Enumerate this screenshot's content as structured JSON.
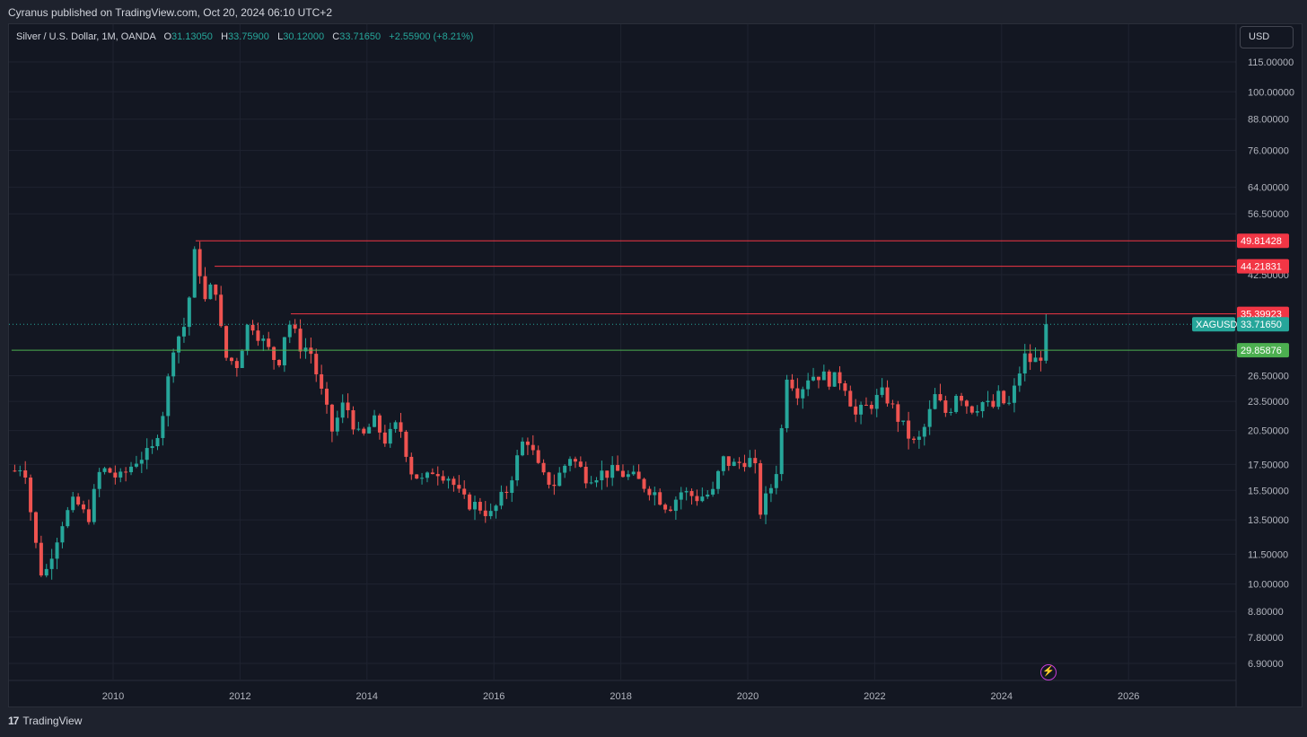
{
  "header": {
    "publisher_line": "Cyranus published on TradingView.com, Oct 20, 2024 06:10 UTC+2"
  },
  "legend": {
    "symbol": "Silver / U.S. Dollar, 1M, OANDA",
    "open_label": "O",
    "open": "31.13050",
    "high_label": "H",
    "high": "33.75900",
    "low_label": "L",
    "low": "30.12000",
    "close_label": "C",
    "close": "33.71650",
    "change": "+2.55900 (+8.21%)"
  },
  "currency_button": "USD",
  "footer": {
    "brand": "TradingView",
    "logo_text": "17"
  },
  "colors": {
    "up": "#26a69a",
    "down": "#ef5350",
    "resistance": "#f23645",
    "support": "#4caf50",
    "background": "#131722",
    "grid": "#1f2330"
  },
  "chart_data": {
    "type": "candlestick",
    "symbol": "XAGUSD",
    "scale": "log",
    "x_tick_labels": [
      "2010",
      "2012",
      "2014",
      "2016",
      "2018",
      "2020",
      "2022",
      "2024",
      "2026"
    ],
    "y_tick_labels": [
      "115.00000",
      "100.00000",
      "88.00000",
      "76.00000",
      "64.00000",
      "56.50000",
      "42.50000",
      "26.50000",
      "23.50000",
      "20.50000",
      "17.50000",
      "15.50000",
      "13.50000",
      "11.50000",
      "10.00000",
      "8.80000",
      "7.80000",
      "6.90000"
    ],
    "current_price": {
      "symbol": "XAGUSD",
      "value": "33.71650",
      "numeric": 33.7165
    },
    "levels": [
      {
        "label": "49.81428",
        "value": 49.81428,
        "kind": "resistance",
        "start": 2011.3
      },
      {
        "label": "44.21831",
        "value": 44.21831,
        "kind": "resistance",
        "start": 2011.6
      },
      {
        "label": "35.39923",
        "value": 35.39923,
        "kind": "resistance",
        "start": 2012.8
      },
      {
        "label": "29.85876",
        "value": 29.85876,
        "kind": "support",
        "start": 2008.4
      }
    ],
    "path_points": [
      [
        2008.45,
        17.0
      ],
      [
        2008.6,
        17.6
      ],
      [
        2008.75,
        12.6
      ],
      [
        2008.9,
        10.1
      ],
      [
        2009.0,
        11.3
      ],
      [
        2009.2,
        13.4
      ],
      [
        2009.4,
        14.8
      ],
      [
        2009.6,
        13.5
      ],
      [
        2009.8,
        17.1
      ],
      [
        2009.95,
        16.9
      ],
      [
        2010.1,
        16.3
      ],
      [
        2010.4,
        18.1
      ],
      [
        2010.6,
        18.4
      ],
      [
        2010.8,
        22.8
      ],
      [
        2010.95,
        30.6
      ],
      [
        2011.15,
        34.0
      ],
      [
        2011.3,
        48.5
      ],
      [
        2011.45,
        37.5
      ],
      [
        2011.6,
        41.5
      ],
      [
        2011.75,
        29.0
      ],
      [
        2011.95,
        28.0
      ],
      [
        2012.15,
        34.5
      ],
      [
        2012.4,
        30.5
      ],
      [
        2012.6,
        28.0
      ],
      [
        2012.75,
        34.5
      ],
      [
        2012.95,
        30.5
      ],
      [
        2013.1,
        30.0
      ],
      [
        2013.3,
        24.0
      ],
      [
        2013.45,
        20.5
      ],
      [
        2013.65,
        23.5
      ],
      [
        2013.9,
        19.5
      ],
      [
        2014.1,
        21.5
      ],
      [
        2014.3,
        19.5
      ],
      [
        2014.5,
        21.3
      ],
      [
        2014.7,
        17.0
      ],
      [
        2014.9,
        16.0
      ],
      [
        2015.05,
        17.2
      ],
      [
        2015.3,
        16.5
      ],
      [
        2015.5,
        14.8
      ],
      [
        2015.8,
        14.3
      ],
      [
        2015.95,
        13.8
      ],
      [
        2016.2,
        15.5
      ],
      [
        2016.5,
        20.2
      ],
      [
        2016.75,
        16.5
      ],
      [
        2016.95,
        16.0
      ],
      [
        2017.2,
        18.2
      ],
      [
        2017.45,
        16.6
      ],
      [
        2017.7,
        16.8
      ],
      [
        2017.95,
        16.9
      ],
      [
        2018.2,
        16.4
      ],
      [
        2018.5,
        15.5
      ],
      [
        2018.75,
        14.3
      ],
      [
        2018.95,
        15.4
      ],
      [
        2019.2,
        15.0
      ],
      [
        2019.45,
        15.3
      ],
      [
        2019.6,
        17.9
      ],
      [
        2019.8,
        17.4
      ],
      [
        2019.95,
        17.9
      ],
      [
        2020.1,
        17.7
      ],
      [
        2020.2,
        14.1
      ],
      [
        2020.35,
        15.5
      ],
      [
        2020.5,
        18.0
      ],
      [
        2020.6,
        27.0
      ],
      [
        2020.8,
        24.5
      ],
      [
        2020.95,
        26.4
      ],
      [
        2021.1,
        26.7
      ],
      [
        2021.3,
        26.0
      ],
      [
        2021.5,
        26.1
      ],
      [
        2021.7,
        22.0
      ],
      [
        2021.95,
        23.3
      ],
      [
        2022.15,
        24.5
      ],
      [
        2022.3,
        22.5
      ],
      [
        2022.5,
        20.3
      ],
      [
        2022.65,
        19.0
      ],
      [
        2022.8,
        21.0
      ],
      [
        2022.95,
        24.0
      ],
      [
        2023.15,
        22.0
      ],
      [
        2023.3,
        24.9
      ],
      [
        2023.5,
        22.7
      ],
      [
        2023.7,
        23.4
      ],
      [
        2023.85,
        22.7
      ],
      [
        2023.95,
        24.0
      ],
      [
        2024.1,
        22.8
      ],
      [
        2024.2,
        24.8
      ],
      [
        2024.35,
        29.0
      ],
      [
        2024.5,
        28.2
      ],
      [
        2024.6,
        28.9
      ],
      [
        2024.7,
        31.1
      ],
      [
        2024.78,
        33.7
      ]
    ]
  }
}
